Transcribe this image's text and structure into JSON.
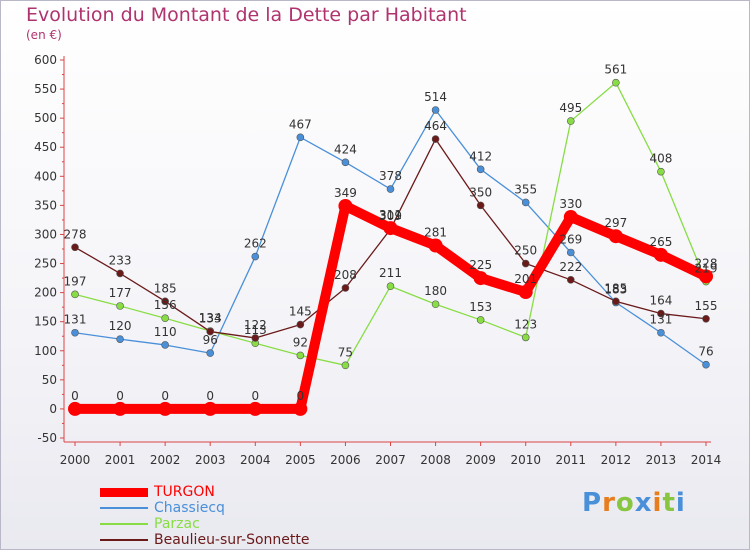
{
  "chart_data": {
    "type": "line",
    "title": "Evolution du Montant de la Dette par Habitant",
    "subtitle": "(en €)",
    "categories": [
      "2000",
      "2001",
      "2002",
      "2003",
      "2004",
      "2005",
      "2006",
      "2007",
      "2008",
      "2009",
      "2010",
      "2011",
      "2012",
      "2013",
      "2014"
    ],
    "ylim": [
      -50,
      600
    ],
    "yticks": [
      -50,
      0,
      50,
      100,
      150,
      200,
      250,
      300,
      350,
      400,
      450,
      500,
      550,
      600
    ],
    "grid": false,
    "legend_position": "bottom-left",
    "series": [
      {
        "name": "TURGON",
        "color": "#ff0000",
        "values": [
          0,
          0,
          0,
          0,
          0,
          0,
          349,
          311,
          281,
          225,
          201,
          330,
          297,
          265,
          228
        ],
        "labels": [
          "0",
          "0",
          "0",
          "0",
          "0",
          "0",
          "349",
          "311",
          "281",
          "225",
          "201",
          "330",
          "297",
          "265",
          "228"
        ]
      },
      {
        "name": "Chassiecq",
        "color": "#4a90d9",
        "values": [
          131,
          120,
          110,
          96,
          262,
          467,
          424,
          378,
          514,
          412,
          355,
          269,
          183,
          131,
          76
        ],
        "labels": [
          "131",
          "120",
          "110",
          "96",
          "262",
          "467",
          "424",
          "378",
          "514",
          "412",
          "355",
          "269",
          "183",
          "131",
          "76"
        ]
      },
      {
        "name": "Parzac",
        "color": "#88dd44",
        "values": [
          197,
          177,
          156,
          134,
          113,
          92,
          75,
          211,
          180,
          153,
          123,
          495,
          561,
          408,
          219
        ],
        "labels": [
          "197",
          "177",
          "156",
          "134",
          "113",
          "92",
          "75",
          "211",
          "180",
          "153",
          "123",
          "495",
          "561",
          "408",
          "219"
        ]
      },
      {
        "name": "Beaulieu-sur-Sonnette",
        "color": "#6b1a1a",
        "values": [
          278,
          233,
          185,
          133,
          122,
          145,
          208,
          309,
          464,
          350,
          250,
          222,
          185,
          164,
          155
        ],
        "labels": [
          "278",
          "233",
          "185",
          "133",
          "122",
          "145",
          "208",
          "309",
          "464",
          "350",
          "250",
          "222",
          "185",
          "164",
          "155"
        ]
      }
    ]
  },
  "logo": {
    "letters": [
      "P",
      "r",
      "o",
      "x",
      "i",
      "t",
      "i"
    ],
    "colors": [
      "#4a90d9",
      "#e87d1e",
      "#88c540",
      "#4a90d9",
      "#e87d1e",
      "#88c540",
      "#4a90d9"
    ]
  }
}
